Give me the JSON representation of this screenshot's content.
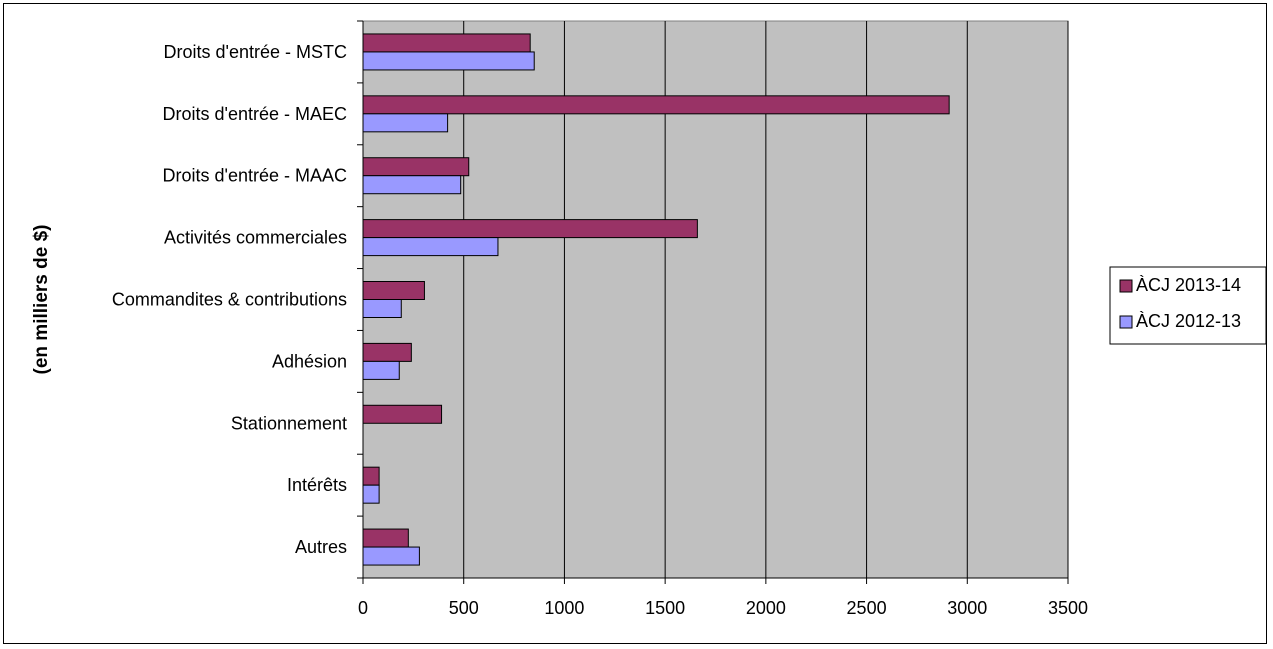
{
  "chart_data": {
    "type": "bar",
    "orientation": "horizontal",
    "categories": [
      "Droits d'entrée - MSTC",
      "Droits d'entrée - MAEC",
      "Droits d'entrée - MAAC",
      "Activités commerciales",
      "Commandites & contributions",
      "Adhésion",
      "Stationnement",
      "Intérêts",
      "Autres"
    ],
    "series": [
      {
        "name": "ÀCJ 2013-14",
        "color": "#993366",
        "values": [
          830,
          2910,
          525,
          1660,
          305,
          240,
          390,
          80,
          225
        ]
      },
      {
        "name": "ÀCJ 2012-13",
        "color": "#9999ff",
        "values": [
          850,
          420,
          485,
          670,
          190,
          180,
          0,
          80,
          280
        ]
      }
    ],
    "xlim": [
      0,
      3500
    ],
    "xticks": [
      "0",
      "500",
      "1000",
      "1500",
      "2000",
      "2500",
      "3000",
      "3500"
    ],
    "ylabel": "(en milliers de $)",
    "plot_background": "#c0c0c0",
    "grid": true,
    "legend_position": "right"
  }
}
